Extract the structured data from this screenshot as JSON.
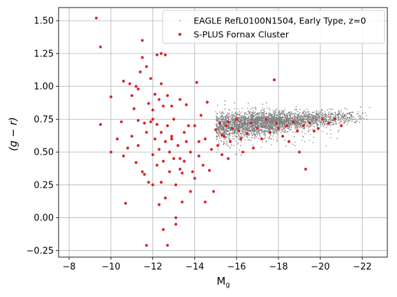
{
  "chart_data": {
    "type": "scatter",
    "title": "",
    "xlabel_main": "M",
    "xlabel_sub": "g",
    "ylabel": "(g − r)",
    "x_inverted": true,
    "xlim": [
      -7.5,
      -23.2
    ],
    "ylim": [
      -0.3,
      1.6
    ],
    "xticks": [
      -8,
      -10,
      -12,
      -14,
      -16,
      -18,
      -20,
      -22
    ],
    "xtick_labels": [
      "−8",
      "−10",
      "−12",
      "−14",
      "−16",
      "−18",
      "−20",
      "−22"
    ],
    "yticks": [
      -0.25,
      0,
      0.25,
      0.5,
      0.75,
      1.0,
      1.25,
      1.5
    ],
    "ytick_labels": [
      "−0.25",
      "0.00",
      "0.25",
      "0.50",
      "0.75",
      "1.00",
      "1.25",
      "1.50"
    ],
    "grid": true,
    "legend_position": "top-right",
    "series": [
      {
        "name": "EAGLE RefL0100N1504, Early Type, z=0",
        "color": "#808080",
        "marker": "small-dot",
        "cloud": {
          "x_range": [
            -15.0,
            -22.5
          ],
          "y_center": 0.73,
          "y_slope_per_mag": 0.012,
          "y_spread": 0.035,
          "count": 4500,
          "outlier_y_min": 0.45,
          "outlier_y_max": 0.93
        }
      },
      {
        "name": "S-PLUS Fornax Cluster",
        "color": "#d62728",
        "marker": "dot",
        "points": [
          [
            -9.3,
            1.52
          ],
          [
            -9.5,
            1.3
          ],
          [
            -9.5,
            0.71
          ],
          [
            -10.0,
            0.92
          ],
          [
            -10.0,
            0.5
          ],
          [
            -10.3,
            0.6
          ],
          [
            -10.5,
            0.73
          ],
          [
            -10.6,
            1.04
          ],
          [
            -10.7,
            0.11
          ],
          [
            -10.8,
            0.53
          ],
          [
            -10.9,
            1.02
          ],
          [
            -11.0,
            0.93
          ],
          [
            -11.0,
            0.62
          ],
          [
            -11.1,
            0.83
          ],
          [
            -11.2,
            1.0
          ],
          [
            -11.3,
            0.98
          ],
          [
            -11.3,
            0.74
          ],
          [
            -11.3,
            0.55
          ],
          [
            -11.4,
            1.11
          ],
          [
            -11.5,
            1.22
          ],
          [
            -11.5,
            1.35
          ],
          [
            -11.5,
            0.35
          ],
          [
            -11.6,
            0.72
          ],
          [
            -11.6,
            0.33
          ],
          [
            -11.7,
            1.15
          ],
          [
            -11.7,
            0.65
          ],
          [
            -11.7,
            -0.21
          ],
          [
            -11.8,
            0.87
          ],
          [
            -11.8,
            0.27
          ],
          [
            -11.9,
            0.73
          ],
          [
            -11.9,
            1.06
          ],
          [
            -12.0,
            0.75
          ],
          [
            -12.0,
            0.48
          ],
          [
            -12.0,
            0.25
          ],
          [
            -12.1,
            0.94
          ],
          [
            -12.1,
            0.6
          ],
          [
            -12.2,
            1.24
          ],
          [
            -12.2,
            0.71
          ],
          [
            -12.2,
            0.4
          ],
          [
            -12.3,
            0.9
          ],
          [
            -12.3,
            0.52
          ],
          [
            -12.3,
            0.1
          ],
          [
            -12.4,
            1.25
          ],
          [
            -12.4,
            1.02
          ],
          [
            -12.4,
            0.65
          ],
          [
            -12.4,
            0.27
          ],
          [
            -12.5,
            0.85
          ],
          [
            -12.5,
            0.43
          ],
          [
            -12.5,
            -0.09
          ],
          [
            -12.6,
            1.24
          ],
          [
            -12.6,
            0.15
          ],
          [
            -12.6,
            0.58
          ],
          [
            -12.7,
            0.93
          ],
          [
            -12.7,
            0.7
          ],
          [
            -12.7,
            -0.21
          ],
          [
            -12.8,
            0.5
          ],
          [
            -12.8,
            0.35
          ],
          [
            -12.9,
            0.62
          ],
          [
            -12.9,
            0.85
          ],
          [
            -13.0,
            0.45
          ],
          [
            -13.0,
            0.75
          ],
          [
            -13.1,
            0.0
          ],
          [
            -13.1,
            0.25
          ],
          [
            -13.1,
            -0.05
          ],
          [
            -13.2,
            0.55
          ],
          [
            -13.3,
            0.45
          ],
          [
            -13.3,
            0.9
          ],
          [
            -13.4,
            0.34
          ],
          [
            -13.4,
            0.12
          ],
          [
            -13.5,
            0.65
          ],
          [
            -13.5,
            0.43
          ],
          [
            -13.6,
            0.86
          ],
          [
            -13.6,
            0.58
          ],
          [
            -13.7,
            0.7
          ],
          [
            -13.8,
            0.5
          ],
          [
            -13.8,
            0.2
          ],
          [
            -13.9,
            0.35
          ],
          [
            -14.0,
            0.3
          ],
          [
            -14.0,
            0.7
          ],
          [
            -14.1,
            1.03
          ],
          [
            -14.2,
            0.58
          ],
          [
            -14.3,
            0.78
          ],
          [
            -14.4,
            0.4
          ],
          [
            -14.5,
            0.6
          ],
          [
            -14.5,
            0.12
          ],
          [
            -14.6,
            0.88
          ],
          [
            -14.7,
            0.36
          ],
          [
            -14.8,
            0.52
          ],
          [
            -14.9,
            0.2
          ],
          [
            -15.0,
            0.67
          ],
          [
            -15.1,
            0.55
          ],
          [
            -15.2,
            0.72
          ],
          [
            -15.3,
            0.48
          ],
          [
            -15.4,
            0.62
          ],
          [
            -15.5,
            0.7
          ],
          [
            -15.6,
            0.45
          ],
          [
            -15.7,
            0.58
          ],
          [
            -15.8,
            0.68
          ],
          [
            -16.0,
            0.75
          ],
          [
            -16.2,
            0.6
          ],
          [
            -16.3,
            0.5
          ],
          [
            -16.5,
            0.64
          ],
          [
            -16.7,
            0.72
          ],
          [
            -16.8,
            0.53
          ],
          [
            -17.0,
            0.68
          ],
          [
            -17.2,
            0.6
          ],
          [
            -17.4,
            0.75
          ],
          [
            -17.6,
            0.65
          ],
          [
            -17.8,
            1.05
          ],
          [
            -17.9,
            0.72
          ],
          [
            -18.0,
            0.68
          ],
          [
            -18.2,
            0.62
          ],
          [
            -18.4,
            0.7
          ],
          [
            -18.5,
            0.58
          ],
          [
            -18.7,
            0.73
          ],
          [
            -18.9,
            0.66
          ],
          [
            -19.0,
            0.5
          ],
          [
            -19.2,
            0.7
          ],
          [
            -19.3,
            0.37
          ],
          [
            -19.5,
            0.72
          ],
          [
            -19.7,
            0.66
          ],
          [
            -19.9,
            0.68
          ],
          [
            -20.1,
            0.75
          ],
          [
            -20.4,
            0.72
          ],
          [
            -20.7,
            0.75
          ],
          [
            -21.0,
            0.7
          ],
          [
            -13.3,
            0.37
          ],
          [
            -12.0,
            0.82
          ],
          [
            -11.2,
            0.42
          ],
          [
            -10.6,
            0.47
          ],
          [
            -12.9,
            0.6
          ],
          [
            -14.2,
            0.47
          ],
          [
            -15.3,
            0.63
          ],
          [
            -16.1,
            0.66
          ],
          [
            -15.6,
            0.73
          ]
        ]
      }
    ]
  }
}
